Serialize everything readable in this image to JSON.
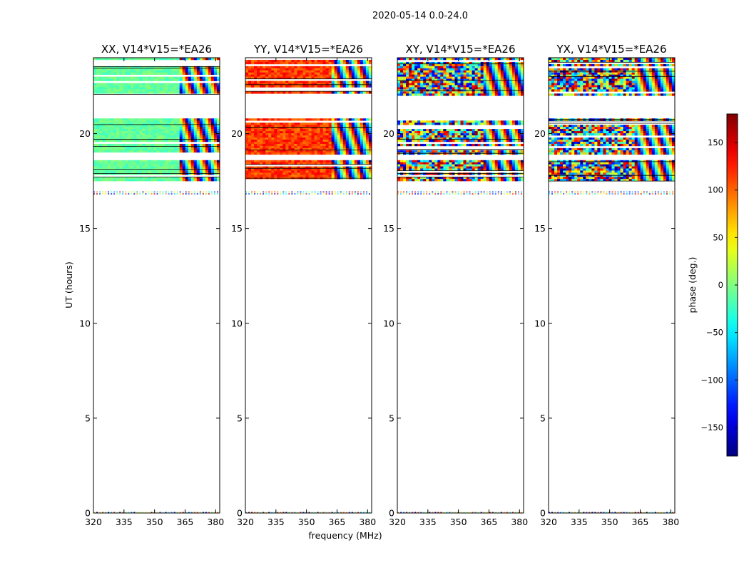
{
  "chart_data": {
    "type": "heatmap",
    "suptitle": "2020-05-14 0.0-24.0",
    "xlabel": "frequency (MHz)",
    "ylabel": "UT (hours)",
    "xlim": [
      320,
      382
    ],
    "ylim": [
      0,
      24
    ],
    "xticks": [
      320,
      335,
      350,
      365,
      380
    ],
    "xtick_labels": [
      "320",
      "335",
      "350",
      "365",
      "380"
    ],
    "yticks": [
      0,
      5,
      10,
      15,
      20
    ],
    "ytick_labels": [
      "0",
      "5",
      "10",
      "15",
      "20"
    ],
    "colorbar": {
      "label": "phase (deg.)",
      "range": [
        -180,
        180
      ],
      "ticks": [
        150,
        100,
        50,
        0,
        -50,
        -100,
        -150
      ],
      "tick_labels": [
        "150",
        "100",
        "50",
        "0",
        "−50",
        "−100",
        "−150"
      ],
      "colormap": "jet"
    },
    "data_bands_ut_hours": [
      [
        17.5,
        18.6
      ],
      [
        18.9,
        20.8
      ],
      [
        22.0,
        24.0
      ]
    ],
    "sparse_rows_ut_hours": [
      0.0,
      16.85,
      16.95
    ],
    "fringe_start_mhz": 362,
    "panels": [
      {
        "title": "XX, V14*V15=*EA26",
        "pol": "XX",
        "base_phase_deg": -10,
        "scatter_deg": 15
      },
      {
        "title": "YY, V14*V15=*EA26",
        "pol": "YY",
        "base_phase_deg": 115,
        "scatter_deg": 25
      },
      {
        "title": "XY, V14*V15=*EA26",
        "pol": "XY",
        "base_phase_deg": 0,
        "scatter_deg": 180
      },
      {
        "title": "YX, V14*V15=*EA26",
        "pol": "YX",
        "base_phase_deg": 0,
        "scatter_deg": 180
      }
    ],
    "colors": {
      "axes": "#000000",
      "background": "#ffffff"
    }
  }
}
